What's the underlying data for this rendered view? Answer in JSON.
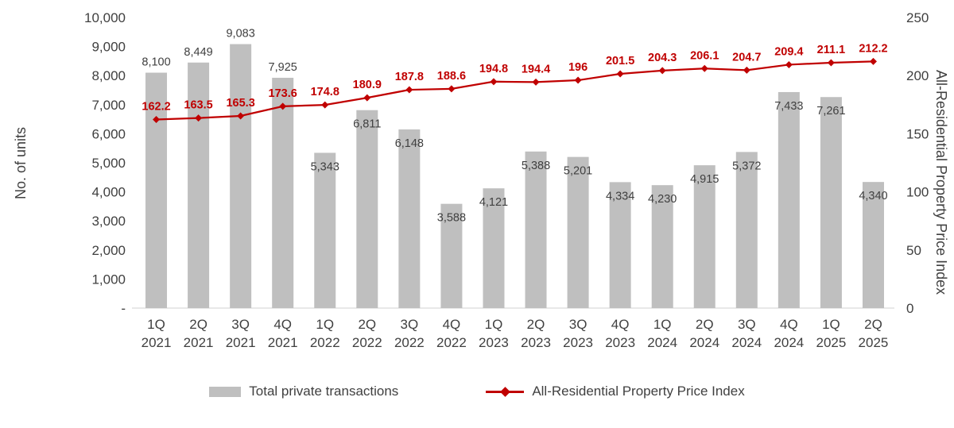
{
  "chart_data": {
    "type": "combo",
    "categories_quarter": [
      "1Q",
      "2Q",
      "3Q",
      "4Q",
      "1Q",
      "2Q",
      "3Q",
      "4Q",
      "1Q",
      "2Q",
      "3Q",
      "4Q",
      "1Q",
      "2Q",
      "3Q",
      "4Q",
      "1Q",
      "2Q"
    ],
    "categories_year": [
      "2021",
      "2021",
      "2021",
      "2021",
      "2022",
      "2022",
      "2022",
      "2022",
      "2023",
      "2023",
      "2023",
      "2023",
      "2024",
      "2024",
      "2024",
      "2024",
      "2025",
      "2025"
    ],
    "series": [
      {
        "name": "Total private transactions",
        "type": "bar",
        "axis": "left",
        "color": "#bfbfbf",
        "values": [
          8100,
          8449,
          9083,
          7925,
          5343,
          6811,
          6148,
          3588,
          4121,
          5388,
          5201,
          4334,
          4230,
          4915,
          5372,
          7433,
          7261,
          4340
        ],
        "labels": [
          "8,100",
          "8,449",
          "9,083",
          "7,925",
          "5,343",
          "6,811",
          "6,148",
          "3,588",
          "4,121",
          "5,388",
          "5,201",
          "4,334",
          "4,230",
          "4,915",
          "5,372",
          "7,433",
          "7,261",
          "4,340"
        ],
        "label_color": "#404040"
      },
      {
        "name": "All-Residential Property Price Index",
        "type": "line",
        "axis": "right",
        "color": "#c00000",
        "marker": "diamond",
        "values": [
          162.2,
          163.5,
          165.3,
          173.6,
          174.8,
          180.9,
          187.8,
          188.6,
          194.8,
          194.4,
          196,
          201.5,
          204.3,
          206.1,
          204.7,
          209.4,
          211.1,
          212.2
        ],
        "labels": [
          "162.2",
          "163.5",
          "165.3",
          "173.6",
          "174.8",
          "180.9",
          "187.8",
          "188.6",
          "194.8",
          "194.4",
          "196",
          "201.5",
          "204.3",
          "206.1",
          "204.7",
          "209.4",
          "211.1",
          "212.2"
        ],
        "label_color": "#c00000"
      }
    ],
    "left_axis": {
      "title": "No. of units",
      "min": 0,
      "max": 10000,
      "tick_step": 1000,
      "tick_labels": [
        "-",
        "1,000",
        "2,000",
        "3,000",
        "4,000",
        "5,000",
        "6,000",
        "7,000",
        "8,000",
        "9,000",
        "10,000"
      ]
    },
    "right_axis": {
      "title": "All-Residential Property Price Index",
      "min": 0,
      "max": 250,
      "tick_step": 50,
      "tick_labels": [
        "0",
        "50",
        "100",
        "150",
        "200",
        "250"
      ]
    },
    "legend": {
      "position": "bottom",
      "items": [
        {
          "label": "Total private transactions",
          "swatch": "bar",
          "color": "#bfbfbf"
        },
        {
          "label": "All-Residential Property Price Index",
          "swatch": "line-diamond",
          "color": "#c00000"
        }
      ]
    },
    "grid": false,
    "background": "#ffffff",
    "axis_line_color": "#d9d9d9"
  }
}
